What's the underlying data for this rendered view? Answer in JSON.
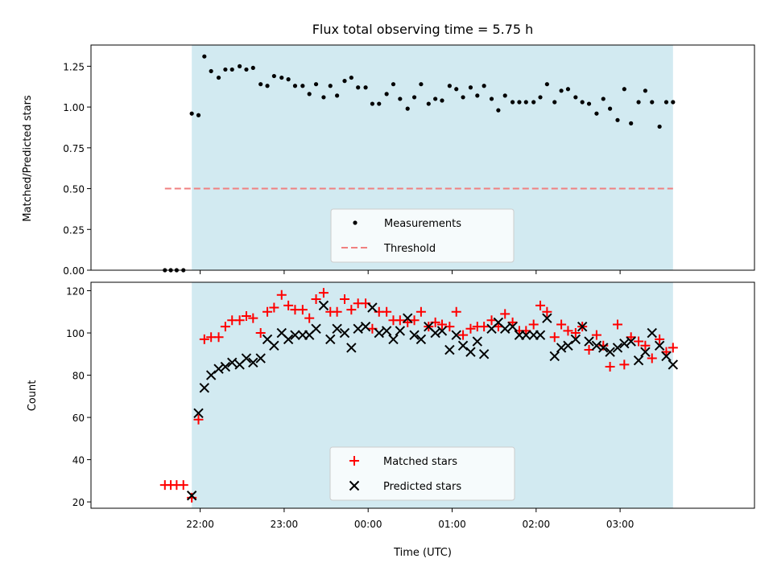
{
  "chart_data": [
    {
      "type": "scatter",
      "title": "Flux total observing time = 5.75 h",
      "xlabel": "",
      "ylabel": "Matched/Predicted stars",
      "ylim": [
        0,
        1.38
      ],
      "yticks": [
        0.0,
        0.25,
        0.5,
        0.75,
        1.0,
        1.25
      ],
      "ytick_labels": [
        "0.00",
        "0.25",
        "0.50",
        "0.75",
        "1.00",
        "1.25"
      ],
      "xlim_hours": [
        20.7,
        28.6
      ],
      "xticks_hours": [
        22,
        23,
        24,
        25,
        26,
        27
      ],
      "xtick_labels": [],
      "shaded_span_hours": [
        21.9,
        27.63
      ],
      "shaded_color": "#add8e6",
      "threshold": 0.5,
      "threshold_span_hours": [
        21.58,
        27.63
      ],
      "threshold_color": "#f08080",
      "legend_position": "lower-center",
      "legend": [
        "Measurements",
        "Threshold"
      ],
      "series": [
        {
          "name": "Measurements",
          "color": "#000000",
          "marker": "dot",
          "x_hours": [
            21.58,
            21.65,
            21.72,
            21.8,
            21.9,
            21.98,
            22.05,
            22.13,
            22.22,
            22.3,
            22.38,
            22.47,
            22.55,
            22.63,
            22.72,
            22.8,
            22.88,
            22.97,
            23.05,
            23.13,
            23.22,
            23.3,
            23.38,
            23.47,
            23.55,
            23.63,
            23.72,
            23.8,
            23.88,
            23.97,
            24.05,
            24.13,
            24.22,
            24.3,
            24.38,
            24.47,
            24.55,
            24.63,
            24.72,
            24.8,
            24.88,
            24.97,
            25.05,
            25.13,
            25.22,
            25.3,
            25.38,
            25.47,
            25.55,
            25.63,
            25.72,
            25.8,
            25.88,
            25.97,
            26.05,
            26.13,
            26.22,
            26.3,
            26.38,
            26.47,
            26.55,
            26.63,
            26.72,
            26.8,
            26.88,
            26.97,
            27.05,
            27.13,
            27.22,
            27.3,
            27.38,
            27.47,
            27.55,
            27.63
          ],
          "y": [
            0.0,
            0.0,
            0.0,
            0.0,
            0.96,
            0.95,
            1.31,
            1.22,
            1.18,
            1.23,
            1.23,
            1.25,
            1.23,
            1.24,
            1.14,
            1.13,
            1.19,
            1.18,
            1.17,
            1.13,
            1.13,
            1.08,
            1.14,
            1.06,
            1.13,
            1.07,
            1.16,
            1.18,
            1.12,
            1.12,
            1.02,
            1.02,
            1.08,
            1.14,
            1.05,
            0.99,
            1.06,
            1.14,
            1.02,
            1.05,
            1.04,
            1.13,
            1.11,
            1.06,
            1.12,
            1.07,
            1.13,
            1.05,
            0.98,
            1.07,
            1.03,
            1.03,
            1.03,
            1.03,
            1.06,
            1.14,
            1.03,
            1.1,
            1.11,
            1.06,
            1.03,
            1.02,
            0.96,
            1.05,
            0.99,
            0.92,
            1.11,
            0.9,
            1.03,
            1.1,
            1.03,
            0.88,
            1.03,
            1.03
          ]
        }
      ]
    },
    {
      "type": "scatter",
      "title": "",
      "xlabel": "Time (UTC)",
      "ylabel": "Count",
      "ylim": [
        17,
        124
      ],
      "yticks": [
        20,
        40,
        60,
        80,
        100,
        120
      ],
      "ytick_labels": [
        "20",
        "40",
        "60",
        "80",
        "100",
        "120"
      ],
      "xlim_hours": [
        20.7,
        28.6
      ],
      "xticks_hours": [
        22,
        23,
        24,
        25,
        26,
        27
      ],
      "xtick_labels": [
        "22:00",
        "23:00",
        "00:00",
        "01:00",
        "02:00",
        "03:00"
      ],
      "shaded_span_hours": [
        21.9,
        27.63
      ],
      "shaded_color": "#add8e6",
      "legend_position": "lower-center",
      "legend": [
        "Matched stars",
        "Predicted stars"
      ],
      "series": [
        {
          "name": "Matched stars",
          "color": "#ff0000",
          "marker": "plus",
          "x_hours": [
            21.58,
            21.65,
            21.72,
            21.8,
            21.9,
            21.98,
            22.05,
            22.13,
            22.22,
            22.3,
            22.38,
            22.47,
            22.55,
            22.63,
            22.72,
            22.8,
            22.88,
            22.97,
            23.05,
            23.13,
            23.22,
            23.3,
            23.38,
            23.47,
            23.55,
            23.63,
            23.72,
            23.8,
            23.88,
            23.97,
            24.05,
            24.13,
            24.22,
            24.3,
            24.38,
            24.47,
            24.55,
            24.63,
            24.72,
            24.8,
            24.88,
            24.97,
            25.05,
            25.13,
            25.22,
            25.3,
            25.38,
            25.47,
            25.55,
            25.63,
            25.72,
            25.8,
            25.88,
            25.97,
            26.05,
            26.13,
            26.22,
            26.3,
            26.38,
            26.47,
            26.55,
            26.63,
            26.72,
            26.8,
            26.88,
            26.97,
            27.05,
            27.13,
            27.22,
            27.3,
            27.38,
            27.47,
            27.55,
            27.63
          ],
          "y": [
            28,
            28,
            28,
            28,
            22,
            59,
            97,
            98,
            98,
            103,
            106,
            106,
            108,
            107,
            100,
            110,
            112,
            118,
            113,
            111,
            111,
            107,
            116,
            119,
            110,
            110,
            116,
            111,
            114,
            114,
            102,
            110,
            110,
            106,
            106,
            105,
            106,
            110,
            103,
            105,
            104,
            103,
            110,
            99,
            102,
            103,
            103,
            106,
            103,
            109,
            105,
            101,
            101,
            104,
            113,
            110,
            98,
            104,
            101,
            100,
            103,
            92,
            99,
            94,
            84,
            104,
            85,
            98,
            96,
            94,
            88,
            97,
            91,
            93
          ]
        },
        {
          "name": "Predicted stars",
          "color": "#000000",
          "marker": "x",
          "x_hours": [
            21.9,
            21.98,
            22.05,
            22.13,
            22.22,
            22.3,
            22.38,
            22.47,
            22.55,
            22.63,
            22.72,
            22.8,
            22.88,
            22.97,
            23.05,
            23.13,
            23.22,
            23.3,
            23.38,
            23.47,
            23.55,
            23.63,
            23.72,
            23.8,
            23.88,
            23.97,
            24.05,
            24.13,
            24.22,
            24.3,
            24.38,
            24.47,
            24.55,
            24.63,
            24.72,
            24.8,
            24.88,
            24.97,
            25.05,
            25.13,
            25.22,
            25.3,
            25.38,
            25.47,
            25.55,
            25.63,
            25.72,
            25.8,
            25.88,
            25.97,
            26.05,
            26.13,
            26.22,
            26.3,
            26.38,
            26.47,
            26.55,
            26.63,
            26.72,
            26.8,
            26.88,
            26.97,
            27.05,
            27.13,
            27.22,
            27.3,
            27.38,
            27.47,
            27.55,
            27.63
          ],
          "y": [
            23,
            62,
            74,
            80,
            83,
            84,
            86,
            85,
            88,
            86,
            88,
            97,
            94,
            100,
            97,
            99,
            99,
            99,
            102,
            113,
            97,
            102,
            100,
            93,
            102,
            103,
            112,
            100,
            101,
            97,
            101,
            107,
            99,
            97,
            103,
            100,
            101,
            92,
            99,
            94,
            91,
            96,
            90,
            102,
            105,
            102,
            103,
            99,
            99,
            99,
            99,
            107,
            89,
            93,
            94,
            97,
            103,
            96,
            94,
            93,
            91,
            93,
            95,
            96,
            87,
            91,
            100,
            94,
            89,
            85
          ]
        }
      ]
    }
  ]
}
